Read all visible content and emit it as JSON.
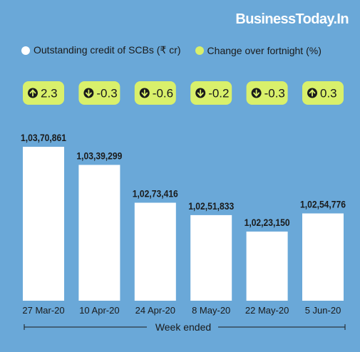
{
  "brand": "BusinessToday.In",
  "legend": {
    "outstanding_label": "Outstanding credit of SCBs (₹ cr)",
    "change_label": "Change over fortnight (%)"
  },
  "colors": {
    "background": "#6aa8d8",
    "bar": "#ffffff",
    "pill": "#d9f06b",
    "arrow_circle": "#1a1a1a",
    "text": "#1a1a1a"
  },
  "chart_data": {
    "type": "bar",
    "xlabel": "Week ended",
    "ylabel": "",
    "categories": [
      "27 Mar-20",
      "10 Apr-20",
      "24 Apr-20",
      "8 May-20",
      "22 May-20",
      "5 Jun-20"
    ],
    "series": [
      {
        "name": "Outstanding credit of SCBs (₹ cr)",
        "values": [
          10370861,
          10339299,
          10273416,
          10251833,
          10223150,
          10254776
        ],
        "value_labels": [
          "1,03,70,861",
          "1,03,39,299",
          "1,02,73,416",
          "1,02,51,833",
          "1,02,23,150",
          "1,02,54,776"
        ]
      },
      {
        "name": "Change over fortnight (%)",
        "values": [
          2.3,
          -0.3,
          -0.6,
          -0.2,
          -0.3,
          0.3
        ],
        "value_labels": [
          "2.3",
          "-0.3",
          "-0.6",
          "-0.2",
          "-0.3",
          "0.3"
        ]
      }
    ],
    "grid": false,
    "legend_position": "top-left"
  }
}
